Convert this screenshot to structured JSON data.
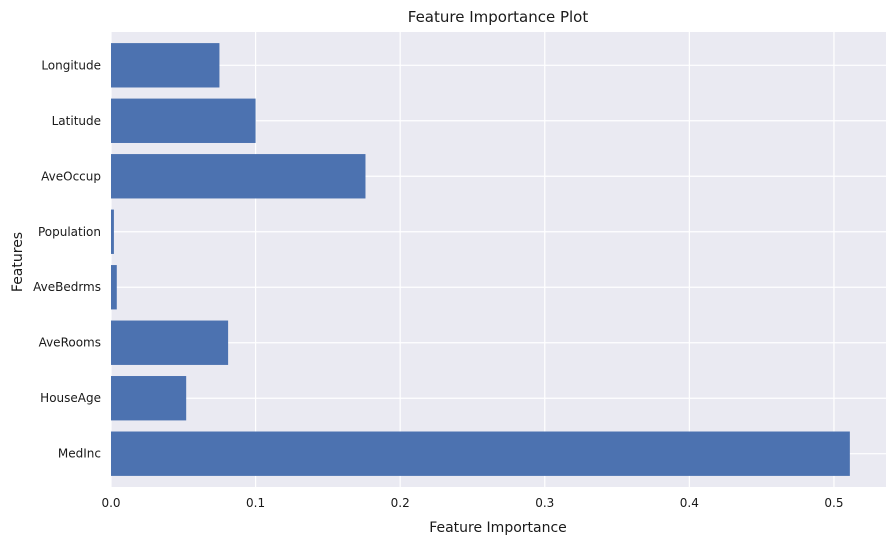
{
  "colors": {
    "bar": "#4c72b0",
    "plot_bg": "#eaeaf2",
    "grid": "#ffffff",
    "text": "#1a1a1a"
  },
  "chart_data": {
    "type": "bar",
    "orientation": "horizontal",
    "title": "Feature Importance Plot",
    "xlabel": "Feature Importance",
    "ylabel": "Features",
    "categories": [
      "MedInc",
      "HouseAge",
      "AveRooms",
      "AveBedrms",
      "Population",
      "AveOccup",
      "Latitude",
      "Longitude"
    ],
    "values": [
      0.511,
      0.052,
      0.081,
      0.004,
      0.002,
      0.176,
      0.1,
      0.075
    ],
    "xlim": [
      0,
      0.536
    ],
    "xticks": [
      0.0,
      0.1,
      0.2,
      0.3,
      0.4,
      0.5
    ],
    "xtick_labels": [
      "0.0",
      "0.1",
      "0.2",
      "0.3",
      "0.4",
      "0.5"
    ],
    "grid": true
  }
}
